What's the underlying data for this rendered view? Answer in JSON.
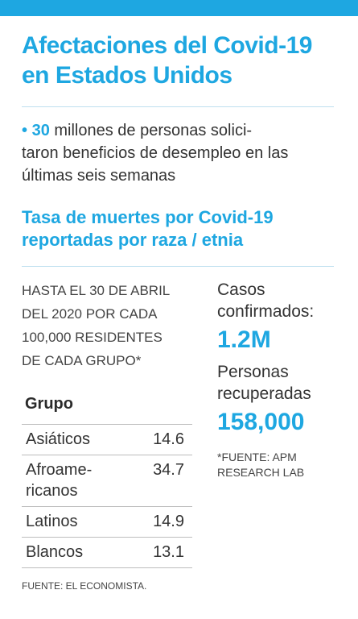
{
  "header": {
    "title_line1": "Afectaciones del Covid-19",
    "title_line2": "en Estados Unidos"
  },
  "bullet": {
    "dot": "•",
    "number": "30",
    "line1_rest": " millones de personas solici-",
    "line2": "taron beneficios de desempleo en las",
    "line3": "últimas seis semanas"
  },
  "chart_data": {
    "type": "table",
    "title": "Tasa de muertes por Covid-19 reportadas por raza / etnia",
    "title_line1": "Tasa de muertes por Covid-19",
    "title_line2": "reportadas por raza / etnia",
    "note_lines": [
      "Hasta el 30 de abril",
      "del 2020 por cada",
      "100,000 residentes",
      "de cada grupo*"
    ],
    "column_header": "Grupo",
    "rows": [
      {
        "group_lines": [
          "Asiáticos"
        ],
        "value": "14.6"
      },
      {
        "group_lines": [
          "Afroame-",
          "ricanos"
        ],
        "value": "34.7"
      },
      {
        "group_lines": [
          "Latinos"
        ],
        "value": "14.9"
      },
      {
        "group_lines": [
          "Blancos"
        ],
        "value": "13.1"
      }
    ]
  },
  "stats": {
    "confirmed_label_line1": "Casos",
    "confirmed_label_line2": "confirmados:",
    "confirmed_value": "1.2M",
    "recovered_label_line1": "Personas",
    "recovered_label_line2": "recuperadas",
    "recovered_value": "158,000",
    "source_line1": "*Fuente: APM",
    "source_line2": "Research Lab"
  },
  "footer": {
    "source": "Fuente: El Economista."
  },
  "colors": {
    "accent": "#1ea7e1",
    "text": "#333333",
    "rule": "#bfe0f0"
  }
}
